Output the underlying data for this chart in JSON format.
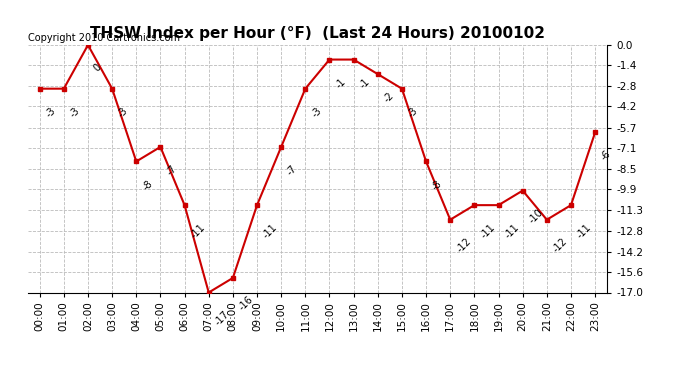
{
  "title": "THSW Index per Hour (°F)  (Last 24 Hours) 20100102",
  "copyright": "Copyright 2010 Cartronics.com",
  "hours": [
    0,
    1,
    2,
    3,
    4,
    5,
    6,
    7,
    8,
    9,
    10,
    11,
    12,
    13,
    14,
    15,
    16,
    17,
    18,
    19,
    20,
    21,
    22,
    23
  ],
  "values": [
    -3,
    -3,
    0,
    -3,
    -8,
    -7,
    -11,
    -17,
    -16,
    -11,
    -7,
    -3,
    -1,
    -1,
    -2,
    -3,
    -8,
    -12,
    -11,
    -11,
    -10,
    -12,
    -11,
    -6
  ],
  "xlabels": [
    "00:00",
    "01:00",
    "02:00",
    "03:00",
    "04:00",
    "05:00",
    "06:00",
    "07:00",
    "08:00",
    "09:00",
    "10:00",
    "11:00",
    "12:00",
    "13:00",
    "14:00",
    "15:00",
    "16:00",
    "17:00",
    "18:00",
    "19:00",
    "20:00",
    "21:00",
    "22:00",
    "23:00"
  ],
  "ylim": [
    -17.0,
    0.0
  ],
  "yticks": [
    0.0,
    -1.4,
    -2.8,
    -4.2,
    -5.7,
    -7.1,
    -8.5,
    -9.9,
    -11.3,
    -12.8,
    -14.2,
    -15.6,
    -17.0
  ],
  "line_color": "#cc0000",
  "marker_color": "#cc0000",
  "marker_size": 3,
  "grid_color": "#bbbbbb",
  "bg_color": "#ffffff",
  "title_fontsize": 11,
  "tick_fontsize": 7.5,
  "copyright_fontsize": 7,
  "annot_fontsize": 7
}
